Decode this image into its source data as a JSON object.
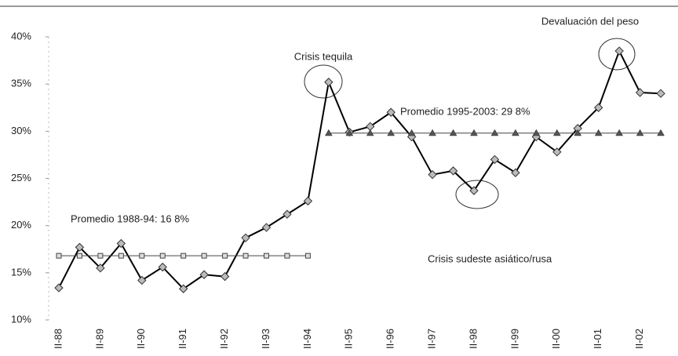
{
  "chart_data": {
    "type": "line",
    "categories": [
      "II-88",
      null,
      "II-89",
      null,
      "II-90",
      null,
      "II-91",
      null,
      "II-92",
      null,
      "II-93",
      null,
      "II-94",
      null,
      "II-95",
      null,
      "II-96",
      null,
      "II-97",
      null,
      "II-98",
      null,
      "II-99",
      null,
      "II-00",
      null,
      "II-01",
      null,
      "II-02",
      null
    ],
    "series": [
      {
        "color": "#000000",
        "marker": "diamond",
        "values": [
          13.4,
          17.7,
          15.5,
          18.1,
          14.2,
          15.6,
          13.3,
          14.8,
          14.6,
          18.7,
          19.8,
          21.2,
          22.6,
          35.2,
          29.9,
          30.5,
          32.0,
          29.4,
          25.4,
          25.8,
          23.7,
          27.0,
          25.6,
          29.4,
          27.8,
          30.3,
          32.5,
          38.5,
          34.1,
          34.0
        ]
      },
      {
        "color": "#444444",
        "marker": "square",
        "values": [
          16.8,
          16.8,
          16.8,
          16.8,
          16.8,
          16.8,
          16.8,
          16.8,
          16.8,
          16.8,
          16.8,
          16.8,
          16.8,
          null,
          null,
          null,
          null,
          null,
          null,
          null,
          null,
          null,
          null,
          null,
          null,
          null,
          null,
          null,
          null,
          null
        ]
      },
      {
        "color": "#444444",
        "marker": "triangle",
        "values": [
          null,
          null,
          null,
          null,
          null,
          null,
          null,
          null,
          null,
          null,
          null,
          null,
          null,
          29.8,
          29.8,
          29.8,
          29.8,
          29.8,
          29.8,
          29.8,
          29.8,
          29.8,
          29.8,
          29.8,
          29.8,
          29.8,
          29.8,
          29.8,
          29.8,
          29.8
        ]
      }
    ],
    "ylim": [
      10,
      40
    ],
    "yticks": [
      {
        "value": 10,
        "label": "10%"
      },
      {
        "value": 15,
        "label": "15%"
      },
      {
        "value": 20,
        "label": "20%"
      },
      {
        "value": 25,
        "label": "25%"
      },
      {
        "value": 30,
        "label": "30%"
      },
      {
        "value": 35,
        "label": "35%"
      },
      {
        "value": 40,
        "label": "40%"
      }
    ],
    "grid": false,
    "annotations": [
      "Crisis tequila",
      "Devaluación del peso",
      "Promedio 1988-94: 16 8%",
      "Promedio 1995-2003: 29 8%",
      "Crisis sudeste asiático/rusa"
    ]
  }
}
